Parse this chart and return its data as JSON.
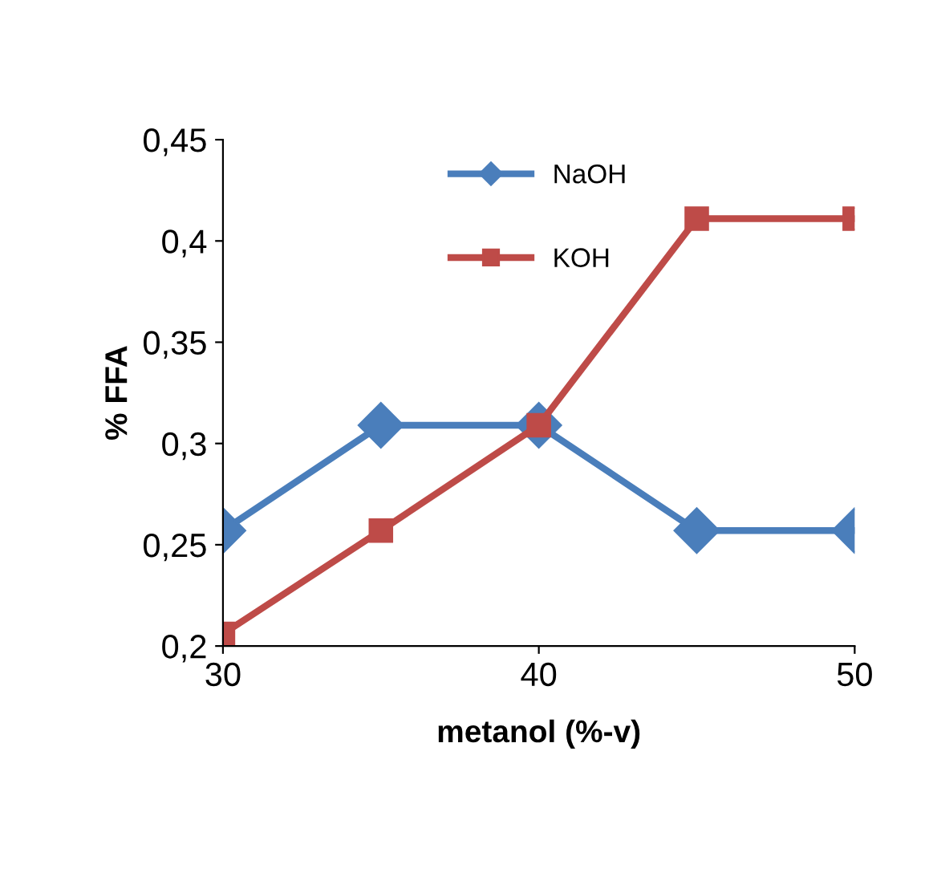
{
  "chart_data": {
    "type": "line",
    "xlabel": "metanol (%-v)",
    "ylabel": "% FFA",
    "x": [
      30,
      35,
      40,
      45,
      50
    ],
    "series": [
      {
        "name": "NaOH",
        "color": "#4a7ebb",
        "marker": "diamond",
        "values": [
          0.257,
          0.309,
          0.309,
          0.257,
          0.257
        ]
      },
      {
        "name": "KOH",
        "color": "#be4b48",
        "marker": "square",
        "values": [
          0.206,
          0.257,
          0.309,
          0.411,
          0.411
        ]
      }
    ],
    "xlim": [
      30,
      50
    ],
    "xticks": [
      30,
      40,
      50
    ],
    "ylim": [
      0.2,
      0.45
    ],
    "yticks": [
      {
        "value": 0.2,
        "label": "0,2"
      },
      {
        "value": 0.25,
        "label": "0,25"
      },
      {
        "value": 0.3,
        "label": "0,3"
      },
      {
        "value": 0.35,
        "label": "0,35"
      },
      {
        "value": 0.4,
        "label": "0,4"
      },
      {
        "value": 0.45,
        "label": "0,45"
      }
    ],
    "grid": false,
    "legend": "top",
    "line_style": "solid"
  }
}
